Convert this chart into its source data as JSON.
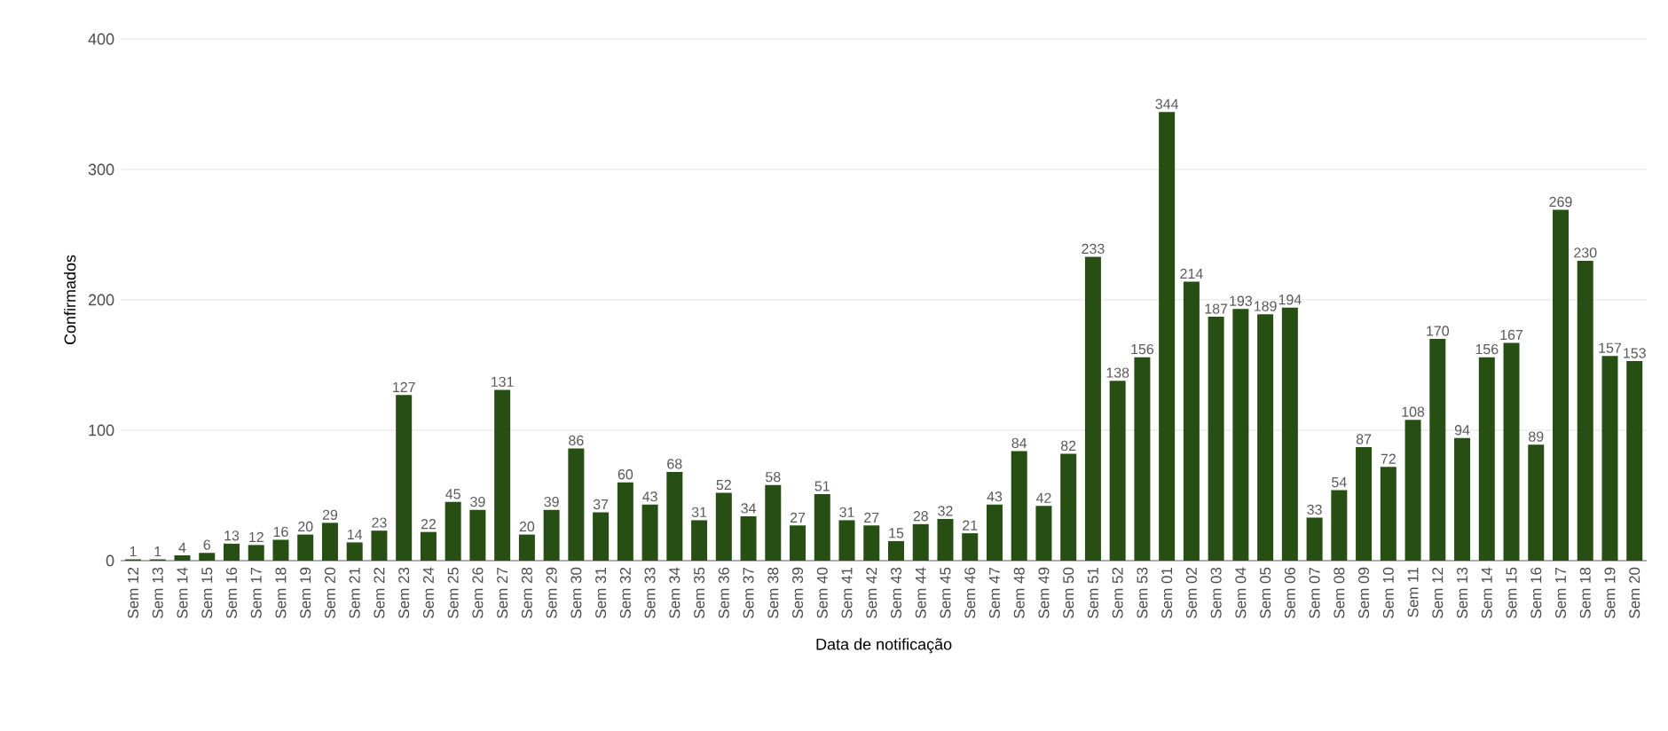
{
  "chart_data": {
    "type": "bar",
    "xlabel": "Data de notificação",
    "ylabel": "Confirmados",
    "categories": [
      "Sem 12",
      "Sem 13",
      "Sem 14",
      "Sem 15",
      "Sem 16",
      "Sem 17",
      "Sem 18",
      "Sem 19",
      "Sem 20",
      "Sem 21",
      "Sem 22",
      "Sem 23",
      "Sem 24",
      "Sem 25",
      "Sem 26",
      "Sem 27",
      "Sem 28",
      "Sem 29",
      "Sem 30",
      "Sem 31",
      "Sem 32",
      "Sem 33",
      "Sem 34",
      "Sem 35",
      "Sem 36",
      "Sem 37",
      "Sem 38",
      "Sem 39",
      "Sem 40",
      "Sem 41",
      "Sem 42",
      "Sem 43",
      "Sem 44",
      "Sem 45",
      "Sem 46",
      "Sem 47",
      "Sem 48",
      "Sem 49",
      "Sem 50",
      "Sem 51",
      "Sem 52",
      "Sem 53",
      "Sem 01",
      "Sem 02",
      "Sem 03",
      "Sem 04",
      "Sem 05",
      "Sem 06",
      "Sem 07",
      "Sem 08",
      "Sem 09",
      "Sem 10",
      "Sem 11",
      "Sem 12",
      "Sem 13",
      "Sem 14",
      "Sem 15",
      "Sem 16",
      "Sem 17",
      "Sem 18",
      "Sem 19",
      "Sem 20"
    ],
    "values": [
      1,
      1,
      4,
      6,
      13,
      12,
      16,
      20,
      29,
      14,
      23,
      127,
      22,
      45,
      39,
      131,
      20,
      39,
      86,
      37,
      60,
      43,
      68,
      31,
      52,
      34,
      58,
      27,
      51,
      31,
      27,
      15,
      28,
      32,
      21,
      43,
      84,
      42,
      82,
      233,
      138,
      156,
      344,
      214,
      187,
      193,
      189,
      194,
      33,
      54,
      87,
      72,
      108,
      170,
      94,
      156,
      167,
      89,
      269,
      230,
      157,
      153
    ],
    "color": "#274e13",
    "ylim": [
      0,
      400
    ],
    "yticks": [
      0,
      100,
      200,
      300,
      400
    ],
    "grid": "y",
    "data_labels": true
  }
}
